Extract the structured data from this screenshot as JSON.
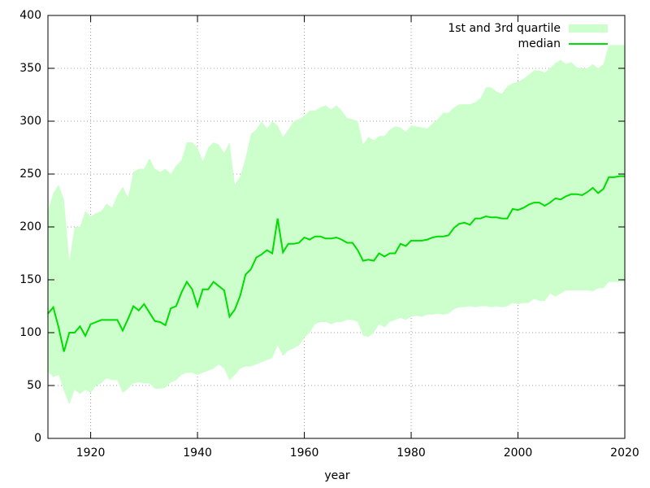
{
  "chart_data": {
    "type": "band_line",
    "xlabel": "year",
    "x": [
      1912,
      1913,
      1914,
      1915,
      1916,
      1917,
      1918,
      1919,
      1920,
      1921,
      1922,
      1923,
      1924,
      1925,
      1926,
      1927,
      1928,
      1929,
      1930,
      1931,
      1932,
      1933,
      1934,
      1935,
      1936,
      1937,
      1938,
      1939,
      1940,
      1941,
      1942,
      1943,
      1944,
      1945,
      1946,
      1947,
      1948,
      1949,
      1950,
      1951,
      1952,
      1953,
      1954,
      1955,
      1956,
      1957,
      1958,
      1959,
      1960,
      1961,
      1962,
      1963,
      1964,
      1965,
      1966,
      1967,
      1968,
      1969,
      1970,
      1971,
      1972,
      1973,
      1974,
      1975,
      1976,
      1977,
      1978,
      1979,
      1980,
      1981,
      1982,
      1983,
      1984,
      1985,
      1986,
      1987,
      1988,
      1989,
      1990,
      1991,
      1992,
      1993,
      1994,
      1995,
      1996,
      1997,
      1998,
      1999,
      2000,
      2001,
      2002,
      2003,
      2004,
      2005,
      2006,
      2007,
      2008,
      2009,
      2010,
      2011,
      2012,
      2013,
      2014,
      2015,
      2016,
      2017,
      2018,
      2019,
      2020
    ],
    "series": [
      {
        "name": "1st and 3rd quartile",
        "color": "#ccffcc",
        "kind": "band",
        "lower": [
          63,
          58,
          60,
          45,
          32,
          46,
          42,
          46,
          43,
          50,
          52,
          57,
          55,
          55,
          43,
          47,
          52,
          53,
          52,
          52,
          47,
          47,
          48,
          53,
          55,
          60,
          62,
          62,
          60,
          62,
          64,
          66,
          70,
          66,
          55,
          60,
          66,
          68,
          68,
          70,
          72,
          74,
          76,
          88,
          78,
          83,
          85,
          88,
          95,
          100,
          108,
          110,
          110,
          108,
          110,
          110,
          112,
          112,
          110,
          97,
          96,
          100,
          108,
          105,
          110,
          112,
          114,
          112,
          115,
          116,
          115,
          117,
          117,
          118,
          117,
          118,
          122,
          124,
          124,
          125,
          124,
          125,
          125,
          124,
          125,
          124,
          125,
          128,
          127,
          128,
          128,
          132,
          130,
          130,
          137,
          134,
          137,
          140,
          140,
          140,
          140,
          140,
          139,
          142,
          142,
          148,
          148,
          148,
          148
        ],
        "upper": [
          215,
          232,
          240,
          226,
          168,
          200,
          200,
          215,
          210,
          213,
          215,
          222,
          218,
          230,
          238,
          228,
          252,
          255,
          255,
          265,
          255,
          252,
          255,
          250,
          258,
          263,
          280,
          280,
          275,
          262,
          275,
          280,
          278,
          270,
          280,
          240,
          248,
          265,
          288,
          292,
          300,
          293,
          300,
          296,
          285,
          292,
          300,
          302,
          305,
          310,
          310,
          313,
          315,
          311,
          315,
          310,
          303,
          302,
          300,
          278,
          285,
          282,
          286,
          286,
          292,
          295,
          294,
          290,
          296,
          295,
          294,
          293,
          298,
          302,
          308,
          308,
          313,
          316,
          316,
          316,
          318,
          322,
          332,
          332,
          328,
          326,
          333,
          336,
          337,
          340,
          344,
          348,
          348,
          346,
          350,
          355,
          358,
          354,
          356,
          351,
          350,
          350,
          354,
          350,
          354,
          372,
          372,
          372,
          372
        ]
      },
      {
        "name": "median",
        "color": "#00dd00",
        "kind": "line",
        "values": [
          118,
          124,
          105,
          82,
          100,
          100,
          106,
          97,
          108,
          110,
          112,
          112,
          112,
          112,
          102,
          113,
          125,
          121,
          127,
          119,
          111,
          110,
          107,
          123,
          125,
          138,
          148,
          141,
          125,
          141,
          141,
          148,
          144,
          140,
          115,
          122,
          135,
          155,
          160,
          171,
          174,
          178,
          175,
          208,
          176,
          184,
          184,
          185,
          190,
          188,
          191,
          191,
          189,
          189,
          190,
          188,
          185,
          185,
          178,
          168,
          169,
          168,
          175,
          172,
          175,
          175,
          184,
          182,
          187,
          187,
          187,
          188,
          190,
          191,
          191,
          192,
          199,
          203,
          204,
          202,
          208,
          208,
          210,
          209,
          209,
          208,
          208,
          217,
          216,
          218,
          221,
          223,
          223,
          220,
          223,
          227,
          226,
          229,
          231,
          231,
          230,
          233,
          237,
          232,
          236,
          247,
          247,
          248,
          248
        ]
      }
    ],
    "xlim": [
      1912,
      2020
    ],
    "xticks": [
      1920,
      1940,
      1960,
      1980,
      2000,
      2020
    ],
    "ylim": [
      0,
      400
    ],
    "yticks": [
      0,
      50,
      100,
      150,
      200,
      250,
      300,
      350,
      400
    ],
    "grid": true,
    "legend": "top-right"
  }
}
